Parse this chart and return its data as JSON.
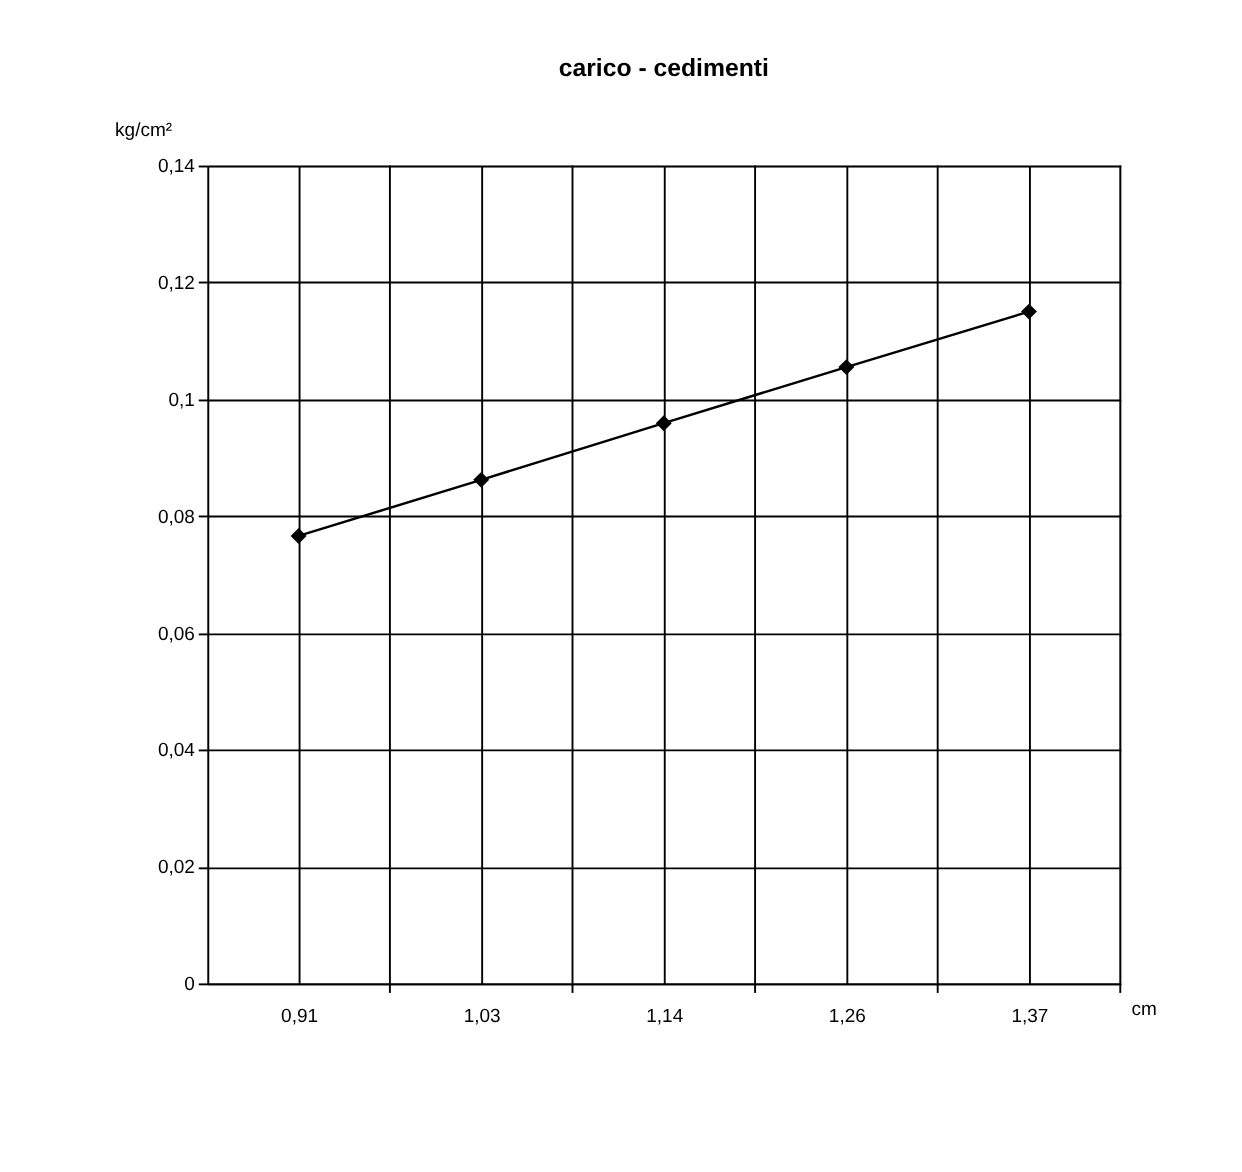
{
  "chart_data": {
    "type": "line",
    "title": "carico - cedimenti",
    "xlabel": "cm",
    "ylabel": "kg/cm²",
    "categories": [
      "0,91",
      "1,03",
      "1,14",
      "1,26",
      "1,37"
    ],
    "series": [
      {
        "color": "#000000",
        "values": [
          0.0766,
          0.0862,
          0.0959,
          0.1055,
          0.115
        ]
      }
    ],
    "ylim": [
      0,
      0.14
    ],
    "yticks": [
      0,
      {
        "value": 0.02,
        "label": "0,02"
      },
      {
        "value": 0.04,
        "label": "0,04"
      },
      {
        "value": 0.06,
        "label": "0,06"
      },
      {
        "value": 0.08,
        "label": "0,08"
      },
      {
        "value": 0.1,
        "label": "0,1"
      },
      {
        "value": 0.12,
        "label": "0,12"
      },
      {
        "value": 0.14,
        "label": "0,14"
      }
    ],
    "grid": true,
    "marker": "diamond",
    "line_style": "solid"
  }
}
